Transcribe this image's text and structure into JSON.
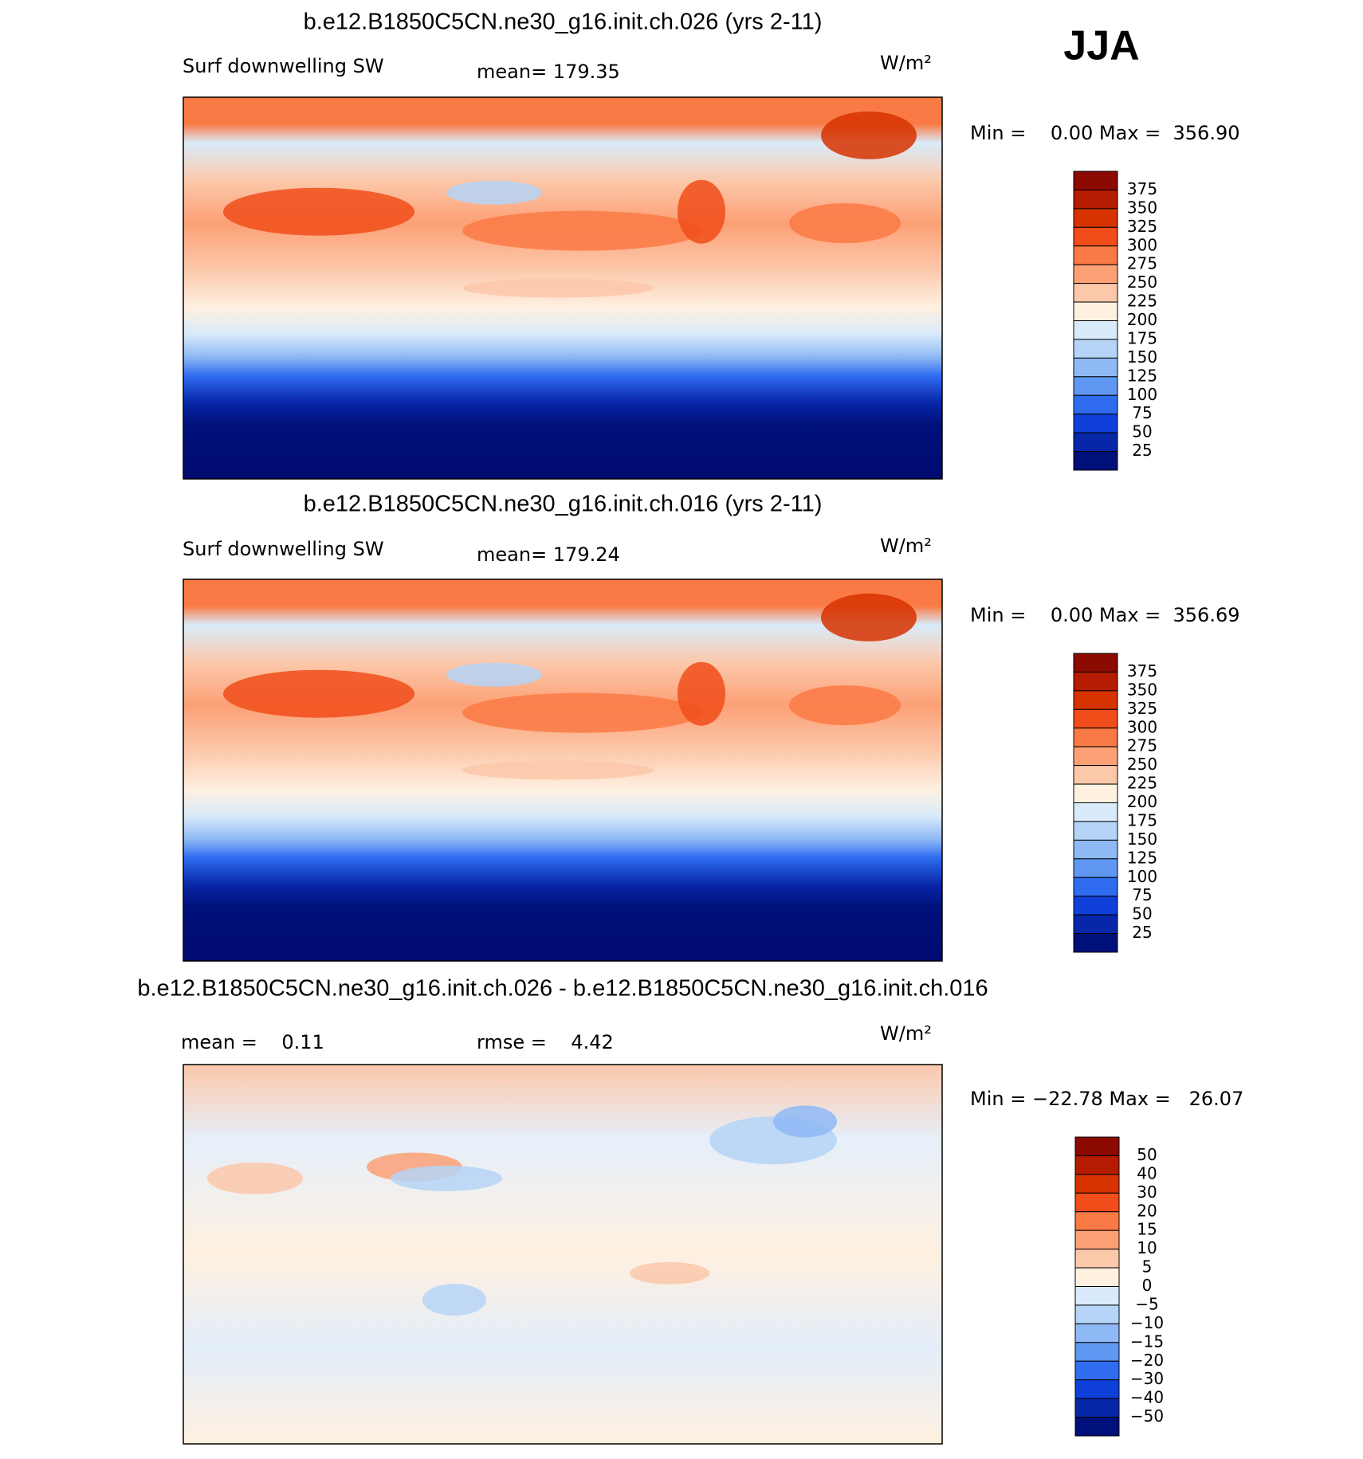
{
  "season": "JJA",
  "panels": [
    {
      "title": "b.e12.B1850C5CN.ne30_g16.init.ch.026 (yrs 2-11)",
      "left_label": "Surf downwelling SW",
      "stats": [
        "mean= 179.35"
      ],
      "units": "W/m²",
      "minmax": "Min =    0.00 Max =  356.90",
      "colorbar": {
        "labels": [
          "375",
          "350",
          "325",
          "300",
          "275",
          "250",
          "225",
          "200",
          "175",
          "150",
          "125",
          "100",
          "75",
          "50",
          "25"
        ],
        "colors": [
          "#8c0a00",
          "#b51b00",
          "#d63300",
          "#f04d1a",
          "#fa7a45",
          "#fca076",
          "#fcc8aa",
          "#fff0e0",
          "#d9ebfa",
          "#b5d4f7",
          "#8fb9f5",
          "#5f97f2",
          "#2f6cf0",
          "#0f40d9",
          "#0826a8",
          "#00107a"
        ]
      }
    },
    {
      "title": "b.e12.B1850C5CN.ne30_g16.init.ch.016 (yrs 2-11)",
      "left_label": "Surf downwelling SW",
      "stats": [
        "mean= 179.24"
      ],
      "units": "W/m²",
      "minmax": "Min =    0.00 Max =  356.69",
      "colorbar": {
        "labels": [
          "375",
          "350",
          "325",
          "300",
          "275",
          "250",
          "225",
          "200",
          "175",
          "150",
          "125",
          "100",
          "75",
          "50",
          "25"
        ],
        "colors": [
          "#8c0a00",
          "#b51b00",
          "#d63300",
          "#f04d1a",
          "#fa7a45",
          "#fca076",
          "#fcc8aa",
          "#fff0e0",
          "#d9ebfa",
          "#b5d4f7",
          "#8fb9f5",
          "#5f97f2",
          "#2f6cf0",
          "#0f40d9",
          "#0826a8",
          "#00107a"
        ]
      }
    },
    {
      "title": "b.e12.B1850C5CN.ne30_g16.init.ch.026 - b.e12.B1850C5CN.ne30_g16.init.ch.016",
      "stats": [
        "mean =    0.11",
        "rmse =    4.42"
      ],
      "units": "W/m²",
      "minmax": "Min = −22.78 Max =   26.07",
      "colorbar": {
        "labels": [
          "50",
          "40",
          "30",
          "20",
          "15",
          "10",
          "5",
          "0",
          "−5",
          "−10",
          "−15",
          "−20",
          "−30",
          "−40",
          "−50"
        ],
        "colors": [
          "#8c0a00",
          "#b51b00",
          "#d63300",
          "#f04d1a",
          "#fa7a45",
          "#fca076",
          "#fcc8aa",
          "#fff0e0",
          "#d9ebfa",
          "#b5d4f7",
          "#8fb9f5",
          "#5f97f2",
          "#2f6cf0",
          "#0f40d9",
          "#0826a8",
          "#00107a"
        ]
      }
    }
  ]
}
